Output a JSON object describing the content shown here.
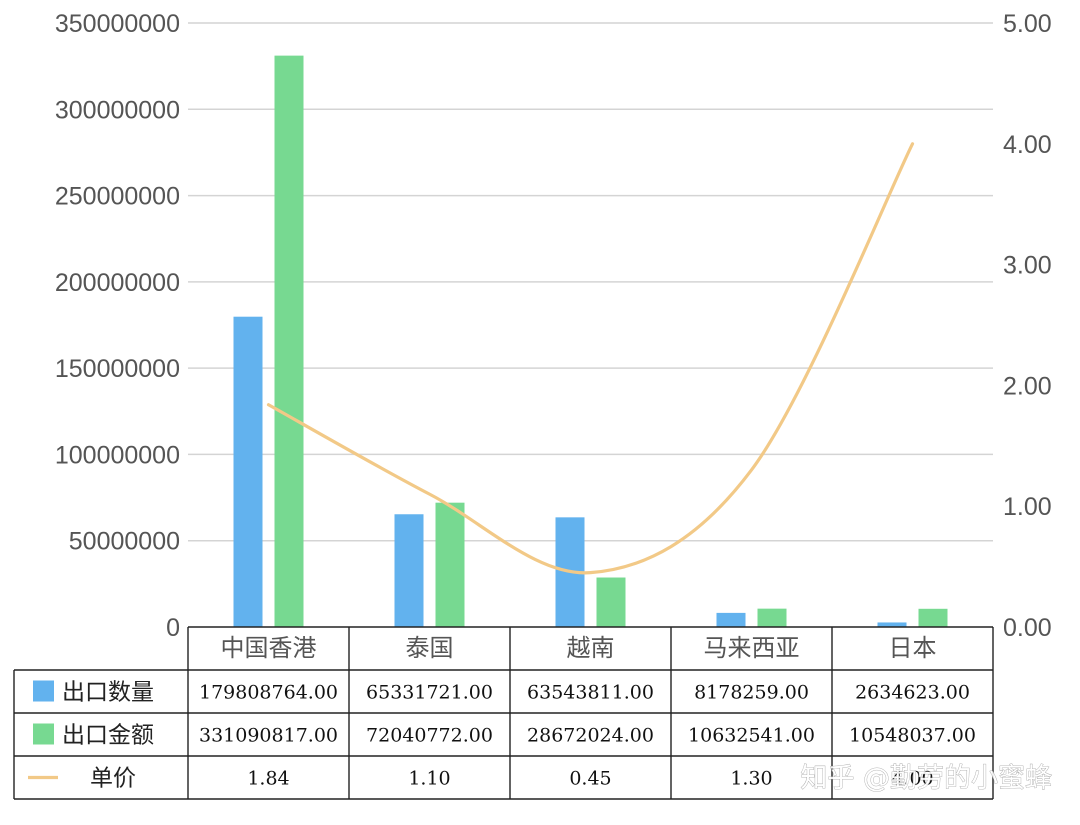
{
  "chart_data": {
    "type": "bar",
    "categories": [
      "中国香港",
      "泰国",
      "越南",
      "马来西亚",
      "日本"
    ],
    "series": [
      {
        "name": "出口数量",
        "kind": "bar",
        "axis": "left",
        "color": "#62b2ee",
        "values": [
          179808764.0,
          65331721.0,
          63543811.0,
          8178259.0,
          2634623.0
        ],
        "display": [
          "179808764.00",
          "65331721.00",
          "63543811.00",
          "8178259.00",
          "2634623.00"
        ]
      },
      {
        "name": "出口金额",
        "kind": "bar",
        "axis": "left",
        "color": "#77d991",
        "values": [
          331090817.0,
          72040772.0,
          28672024.0,
          10632541.0,
          10548037.0
        ],
        "display": [
          "331090817.00",
          "72040772.00",
          "28672024.00",
          "10632541.00",
          "10548037.00"
        ]
      },
      {
        "name": "单价",
        "kind": "line",
        "axis": "right",
        "color": "#f2c987",
        "values": [
          1.84,
          1.1,
          0.45,
          1.3,
          4.0
        ],
        "display": [
          "1.84",
          "1.10",
          "0.45",
          "1.30",
          "4.00"
        ]
      }
    ],
    "y_left": {
      "min": 0,
      "max": 350000000,
      "ticks": [
        "0",
        "50000000",
        "100000000",
        "150000000",
        "200000000",
        "250000000",
        "300000000",
        "350000000"
      ]
    },
    "y_right": {
      "min": 0,
      "max": 5,
      "ticks": [
        "0.00",
        "1.00",
        "2.00",
        "3.00",
        "4.00",
        "5.00"
      ]
    },
    "grid": true,
    "legend": "data-table"
  },
  "watermark": "知乎 @勤劳的小蜜蜂"
}
